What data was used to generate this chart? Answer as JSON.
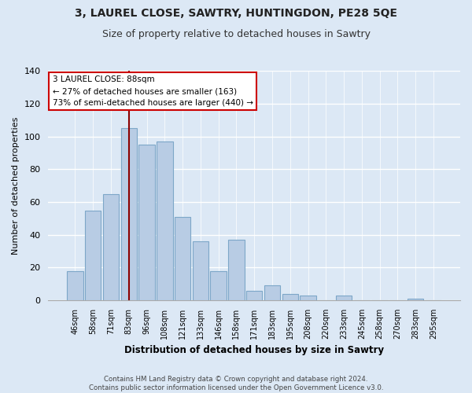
{
  "title1": "3, LAUREL CLOSE, SAWTRY, HUNTINGDON, PE28 5QE",
  "title2": "Size of property relative to detached houses in Sawtry",
  "xlabel": "Distribution of detached houses by size in Sawtry",
  "ylabel": "Number of detached properties",
  "categories": [
    "46sqm",
    "58sqm",
    "71sqm",
    "83sqm",
    "96sqm",
    "108sqm",
    "121sqm",
    "133sqm",
    "146sqm",
    "158sqm",
    "171sqm",
    "183sqm",
    "195sqm",
    "208sqm",
    "220sqm",
    "233sqm",
    "245sqm",
    "258sqm",
    "270sqm",
    "283sqm",
    "295sqm"
  ],
  "values": [
    18,
    55,
    65,
    105,
    95,
    97,
    51,
    36,
    18,
    37,
    6,
    9,
    4,
    3,
    0,
    3,
    0,
    0,
    0,
    1,
    0
  ],
  "bar_color": "#b8cce4",
  "bar_edge_color": "#7da7c8",
  "highlight_bar_idx": 3,
  "highlight_line_color": "#8b0000",
  "ylim": [
    0,
    140
  ],
  "yticks": [
    0,
    20,
    40,
    60,
    80,
    100,
    120,
    140
  ],
  "annotation_title": "3 LAUREL CLOSE: 88sqm",
  "annotation_line1": "← 27% of detached houses are smaller (163)",
  "annotation_line2": "73% of semi-detached houses are larger (440) →",
  "annotation_box_color": "#ffffff",
  "annotation_box_edge": "#cc0000",
  "footer1": "Contains HM Land Registry data © Crown copyright and database right 2024.",
  "footer2": "Contains public sector information licensed under the Open Government Licence v3.0.",
  "background_color": "#dce8f5",
  "grid_color": "#ffffff",
  "title1_fontsize": 10,
  "title2_fontsize": 9
}
